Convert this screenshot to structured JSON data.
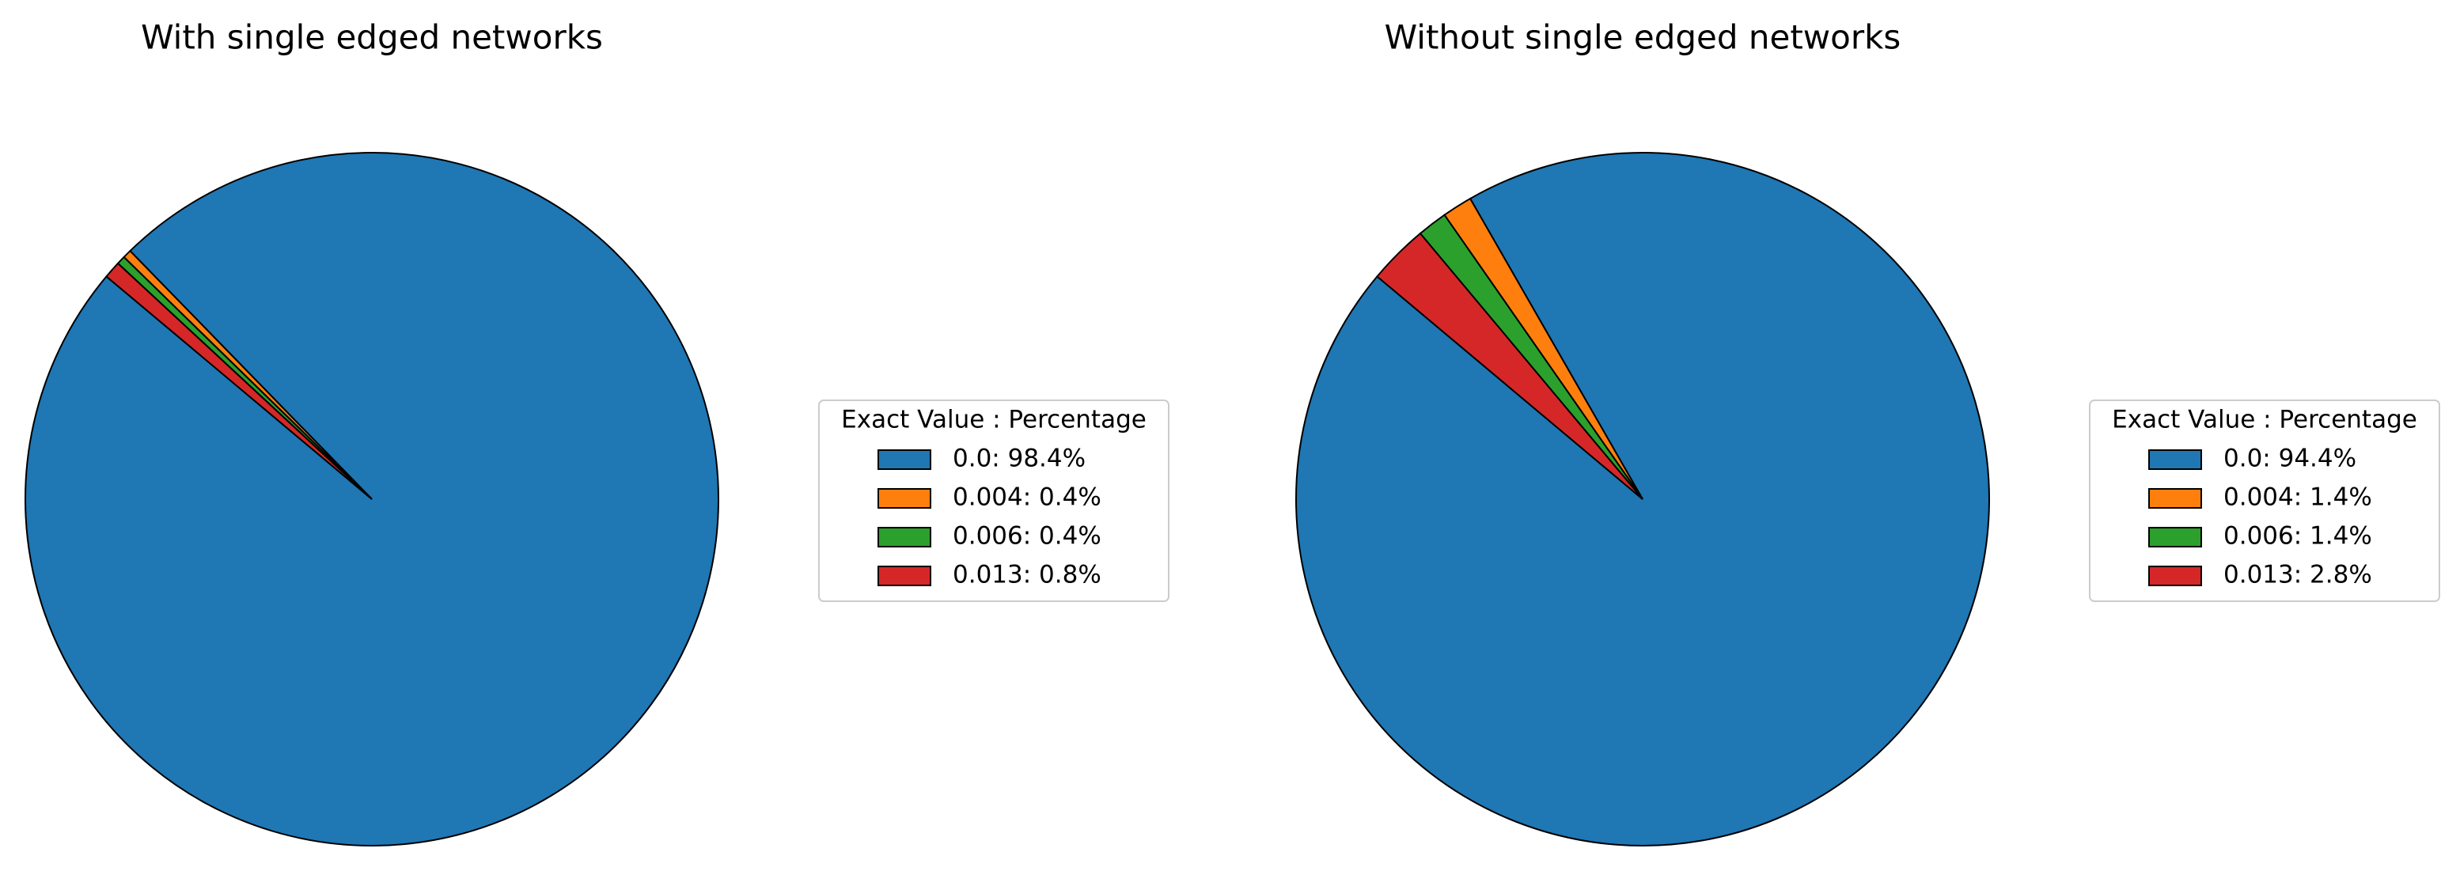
{
  "chart_data": [
    {
      "type": "pie",
      "title": "With single edged networks",
      "legend_title": "Exact Value : Percentage",
      "categories": [
        "0.0: 98.4%",
        "0.004: 0.4%",
        "0.006: 0.4%",
        "0.013: 0.8%"
      ],
      "values": [
        98.4,
        0.4,
        0.4,
        0.8
      ],
      "colors": [
        "#1f77b4",
        "#ff7f0e",
        "#2ca02c",
        "#d62728"
      ],
      "startangle": 140,
      "legend": "right"
    },
    {
      "type": "pie",
      "title": "Without single edged networks",
      "legend_title": "Exact Value : Percentage",
      "categories": [
        "0.0: 94.4%",
        "0.004: 1.4%",
        "0.006: 1.4%",
        "0.013: 2.8%"
      ],
      "values": [
        94.4,
        1.4,
        1.4,
        2.8
      ],
      "colors": [
        "#1f77b4",
        "#ff7f0e",
        "#2ca02c",
        "#d62728"
      ],
      "startangle": 140,
      "legend": "right"
    }
  ]
}
